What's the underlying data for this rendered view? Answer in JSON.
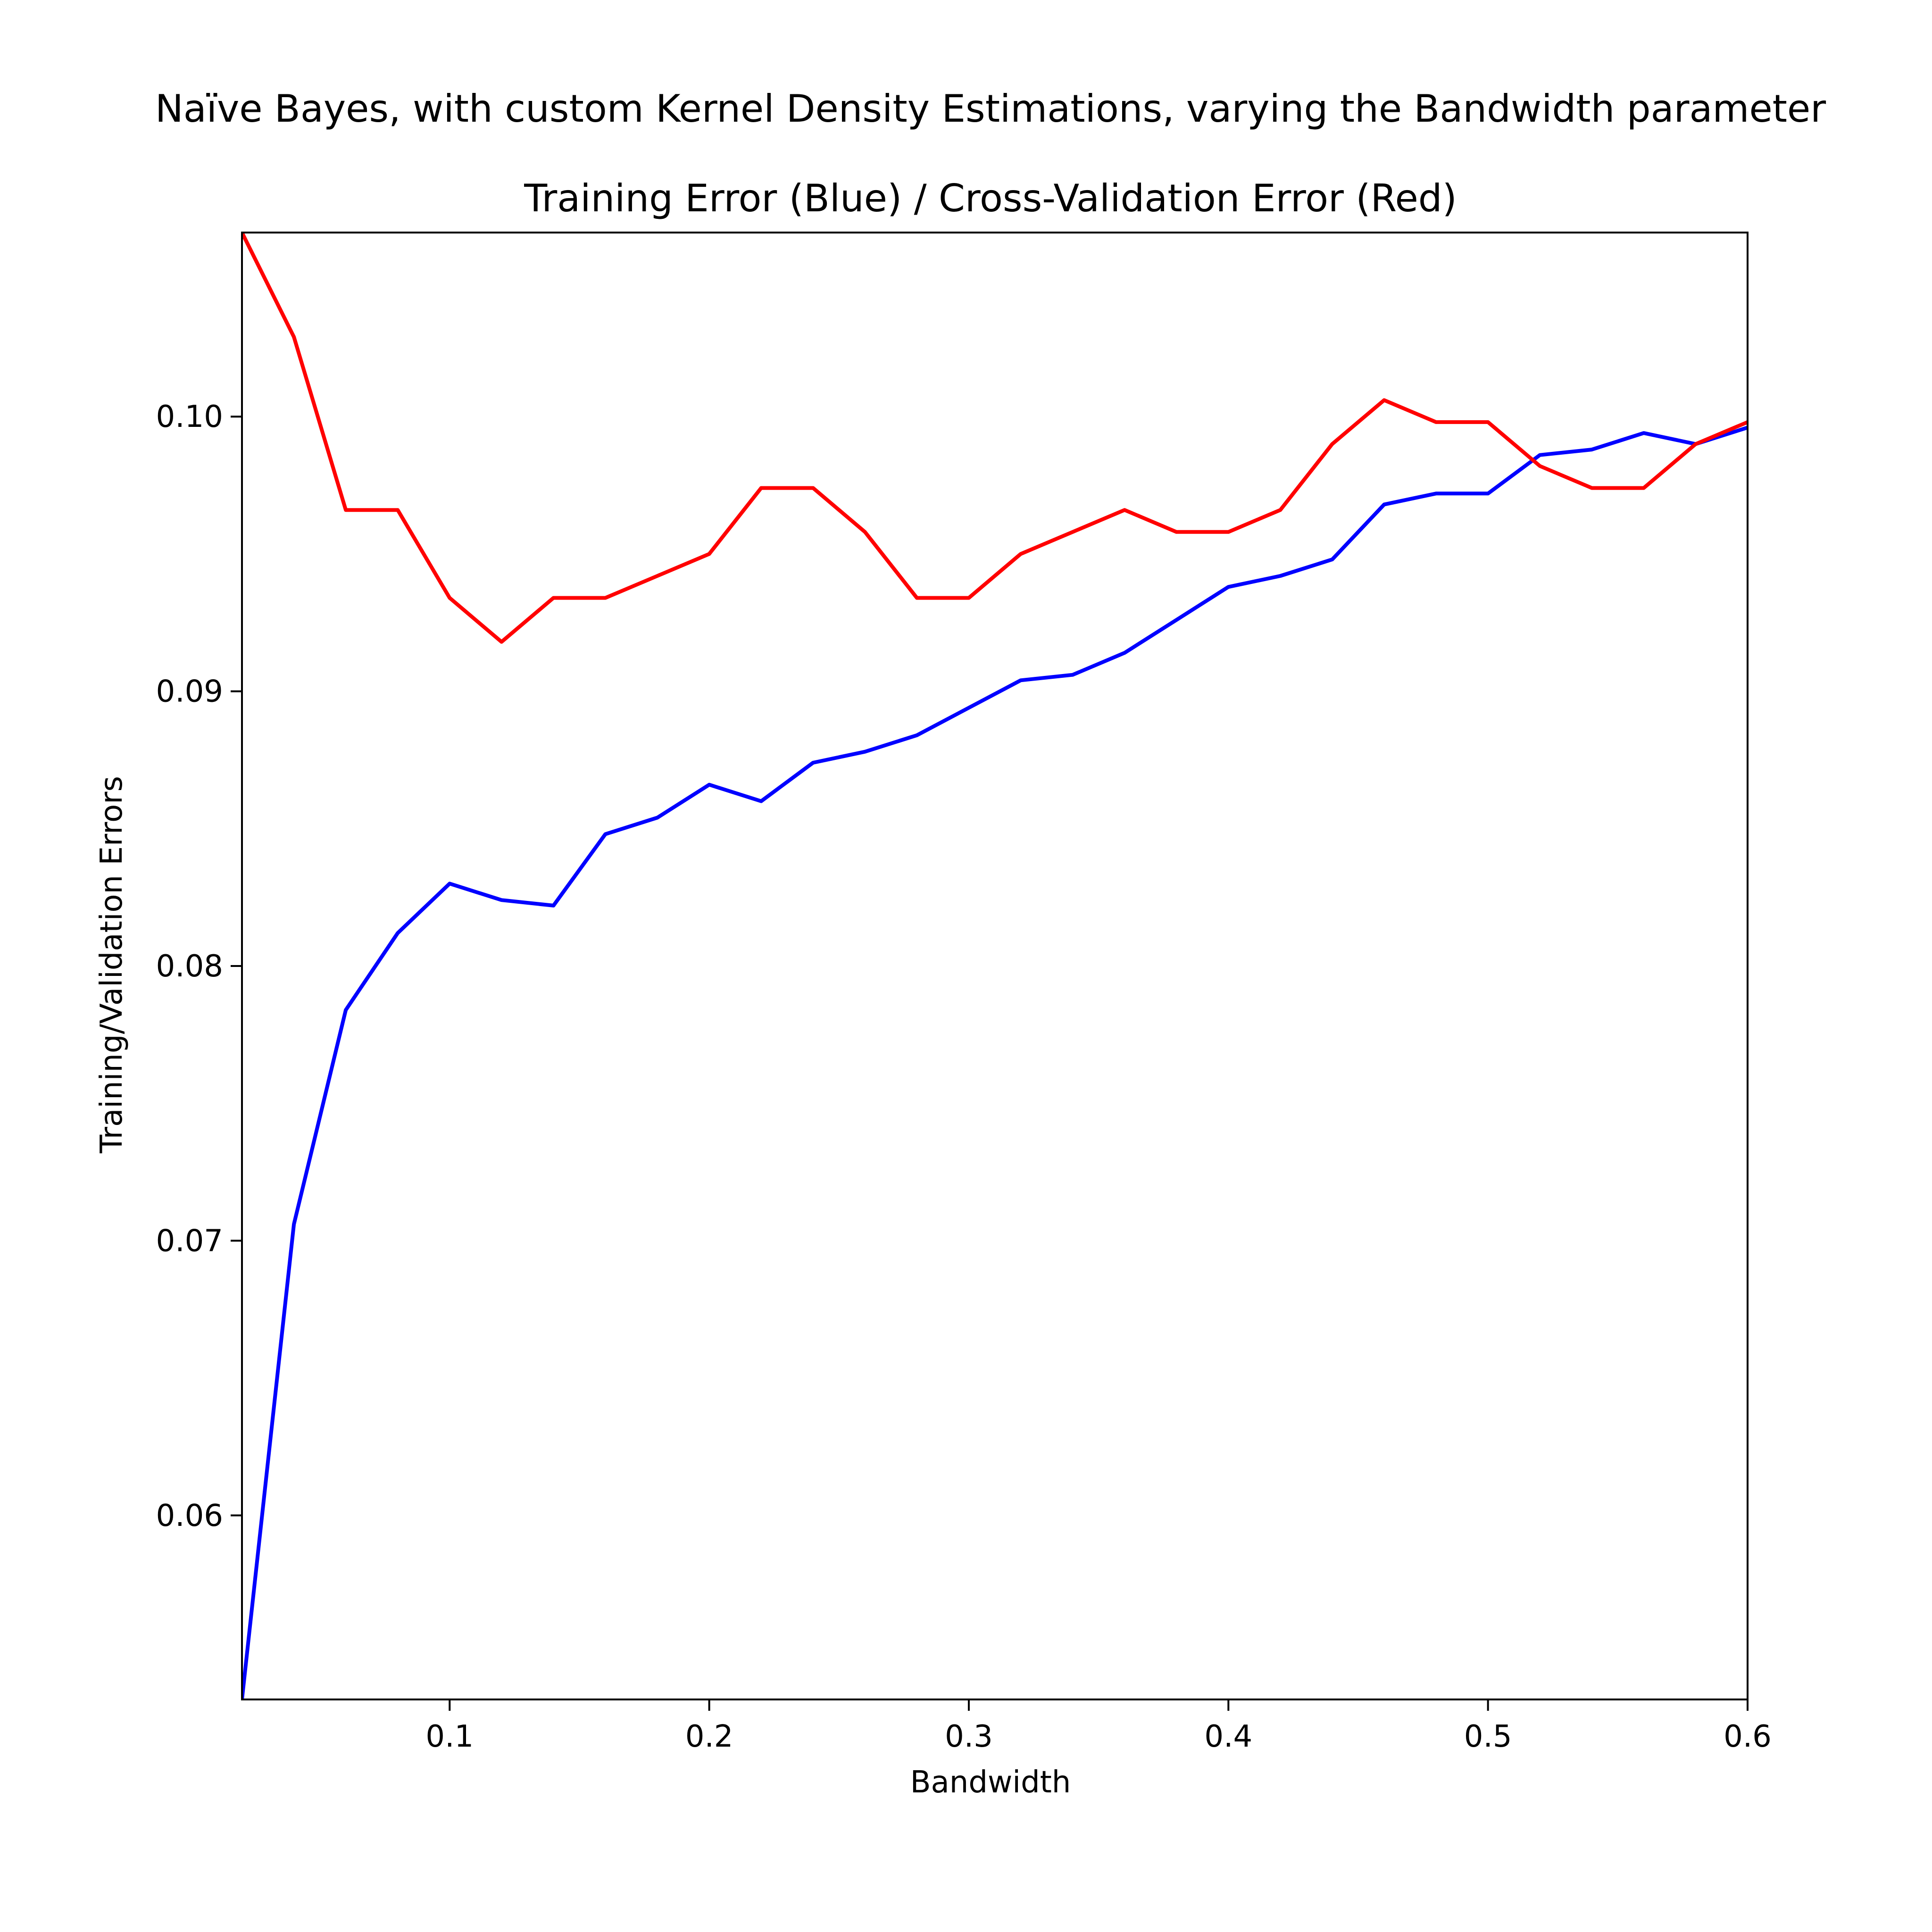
{
  "chart_data": {
    "type": "line",
    "suptitle": "Naïve Bayes, with custom Kernel Density Estimations, varying the Bandwidth parameter",
    "title": "Training Error (Blue) / Cross-Validation Error (Red)",
    "xlabel": "Bandwidth",
    "ylabel": "Training/Validation Errors",
    "xlim": [
      0.02,
      0.6
    ],
    "ylim": [
      0.0533,
      0.1067
    ],
    "xticks": [
      0.1,
      0.2,
      0.3,
      0.4,
      0.5,
      0.6
    ],
    "xtick_labels": [
      "0.1",
      "0.2",
      "0.3",
      "0.4",
      "0.5",
      "0.6"
    ],
    "yticks": [
      0.06,
      0.07,
      0.08,
      0.09,
      0.1
    ],
    "ytick_labels": [
      "0.06",
      "0.07",
      "0.08",
      "0.09",
      "0.10"
    ],
    "grid": false,
    "x": [
      0.02,
      0.04,
      0.06,
      0.08,
      0.1,
      0.12,
      0.14,
      0.16,
      0.18,
      0.2,
      0.22,
      0.24,
      0.26,
      0.28,
      0.3,
      0.32,
      0.34,
      0.36,
      0.38,
      0.4,
      0.42,
      0.44,
      0.46,
      0.48,
      0.5,
      0.52,
      0.54,
      0.56,
      0.58,
      0.6
    ],
    "series": [
      {
        "color": "#0000ff",
        "values": [
          0.0533,
          0.0706,
          0.0784,
          0.0812,
          0.083,
          0.0824,
          0.0822,
          0.0848,
          0.0854,
          0.0866,
          0.086,
          0.0874,
          0.0878,
          0.0884,
          0.0894,
          0.0904,
          0.0906,
          0.0914,
          0.0926,
          0.0938,
          0.0942,
          0.0948,
          0.0968,
          0.0972,
          0.0972,
          0.0986,
          0.0988,
          0.0994,
          0.099,
          0.0996
        ]
      },
      {
        "color": "#ff0000",
        "values": [
          0.1067,
          0.1029,
          0.0966,
          0.0966,
          0.0934,
          0.0918,
          0.0934,
          0.0934,
          0.0942,
          0.095,
          0.0974,
          0.0974,
          0.0958,
          0.0934,
          0.0934,
          0.095,
          0.0958,
          0.0966,
          0.0958,
          0.0958,
          0.0966,
          0.099,
          0.1006,
          0.0998,
          0.0998,
          0.0982,
          0.0974,
          0.0974,
          0.099,
          0.0998
        ]
      }
    ]
  }
}
